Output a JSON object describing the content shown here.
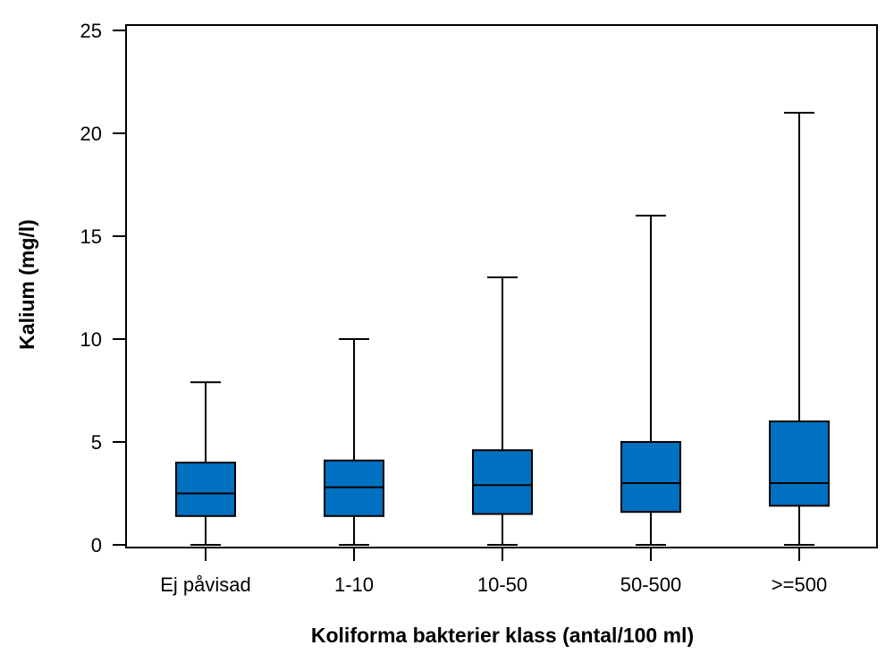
{
  "chart_data": {
    "type": "box",
    "xlabel": "Koliforma bakterier klass (antal/100 ml)",
    "ylabel": "Kalium (mg/l)",
    "ylim": [
      0,
      25
    ],
    "yticks": [
      0,
      5,
      10,
      15,
      20,
      25
    ],
    "ytick_labels": [
      "0",
      "5",
      "10",
      "15",
      "20",
      "25"
    ],
    "categories": [
      "Ej påvisad",
      "1-10",
      "10-50",
      "50-500",
      ">=500"
    ],
    "boxes": [
      {
        "min": 0,
        "q1": 1.4,
        "median": 2.5,
        "q3": 4.0,
        "max": 7.9
      },
      {
        "min": 0,
        "q1": 1.4,
        "median": 2.8,
        "q3": 4.1,
        "max": 10.0
      },
      {
        "min": 0,
        "q1": 1.5,
        "median": 2.9,
        "q3": 4.6,
        "max": 13.0
      },
      {
        "min": 0,
        "q1": 1.6,
        "median": 3.0,
        "q3": 5.0,
        "max": 16.0
      },
      {
        "min": 0,
        "q1": 1.9,
        "median": 3.0,
        "q3": 6.0,
        "max": 21.0
      }
    ],
    "box_color": "#0070C0",
    "grid": false
  }
}
